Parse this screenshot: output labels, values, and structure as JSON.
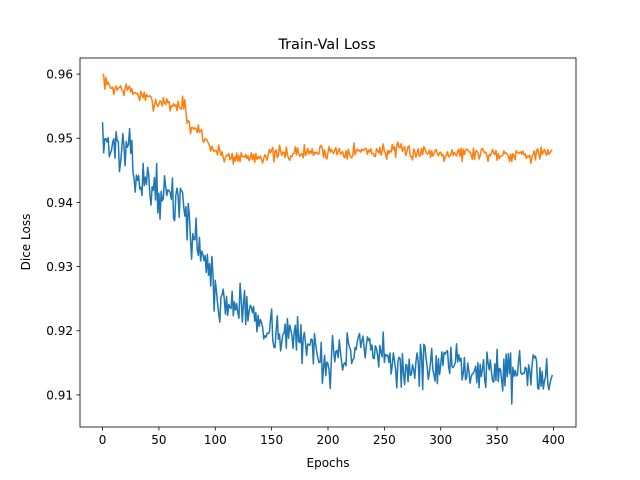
{
  "chart_data": {
    "type": "line",
    "title": "Train-Val Loss",
    "xlabel": "Epochs",
    "ylabel": "Dice Loss",
    "xlim": [
      -20,
      420
    ],
    "ylim": [
      0.905,
      0.9625
    ],
    "x_ticks": [
      0,
      50,
      100,
      150,
      200,
      250,
      300,
      350,
      400
    ],
    "y_ticks": [
      0.91,
      0.92,
      0.93,
      0.94,
      0.95,
      0.96
    ],
    "x_tick_labels": [
      "0",
      "50",
      "100",
      "150",
      "200",
      "250",
      "300",
      "350",
      "400"
    ],
    "y_tick_labels": [
      "0.91",
      "0.92",
      "0.93",
      "0.94",
      "0.95",
      "0.96"
    ],
    "grid": false,
    "legend": false,
    "series": [
      {
        "color": "#ff7f0e",
        "noise": 0.0006,
        "seed": 7,
        "keypoints": [
          [
            0,
            0.96
          ],
          [
            3,
            0.9583
          ],
          [
            10,
            0.9578
          ],
          [
            20,
            0.9577
          ],
          [
            30,
            0.957
          ],
          [
            40,
            0.956
          ],
          [
            50,
            0.9555
          ],
          [
            55,
            0.956
          ],
          [
            60,
            0.955
          ],
          [
            65,
            0.9553
          ],
          [
            70,
            0.9548
          ],
          [
            72,
            0.956
          ],
          [
            75,
            0.953
          ],
          [
            78,
            0.951
          ],
          [
            85,
            0.9515
          ],
          [
            90,
            0.95
          ],
          [
            95,
            0.949
          ],
          [
            100,
            0.948
          ],
          [
            110,
            0.9472
          ],
          [
            120,
            0.947
          ],
          [
            150,
            0.9474
          ],
          [
            200,
            0.948
          ],
          [
            250,
            0.948
          ],
          [
            300,
            0.9478
          ],
          [
            350,
            0.9476
          ],
          [
            400,
            0.9475
          ]
        ]
      },
      {
        "color": "#1f77b4",
        "noise": 0.0017,
        "seed": 13,
        "keypoints": [
          [
            0,
            0.9525
          ],
          [
            2,
            0.9495
          ],
          [
            10,
            0.9485
          ],
          [
            20,
            0.948
          ],
          [
            25,
            0.947
          ],
          [
            30,
            0.944
          ],
          [
            40,
            0.943
          ],
          [
            50,
            0.9415
          ],
          [
            60,
            0.941
          ],
          [
            70,
            0.9395
          ],
          [
            75,
            0.9385
          ],
          [
            80,
            0.9345
          ],
          [
            90,
            0.932
          ],
          [
            95,
            0.93
          ],
          [
            100,
            0.925
          ],
          [
            110,
            0.924
          ],
          [
            120,
            0.924
          ],
          [
            130,
            0.923
          ],
          [
            140,
            0.922
          ],
          [
            150,
            0.92
          ],
          [
            170,
            0.919
          ],
          [
            190,
            0.917
          ],
          [
            200,
            0.915
          ],
          [
            210,
            0.9165
          ],
          [
            230,
            0.917
          ],
          [
            250,
            0.9155
          ],
          [
            270,
            0.914
          ],
          [
            280,
            0.9145
          ],
          [
            300,
            0.9145
          ],
          [
            320,
            0.914
          ],
          [
            340,
            0.914
          ],
          [
            360,
            0.9135
          ],
          [
            380,
            0.9135
          ],
          [
            400,
            0.9138
          ]
        ]
      }
    ]
  }
}
